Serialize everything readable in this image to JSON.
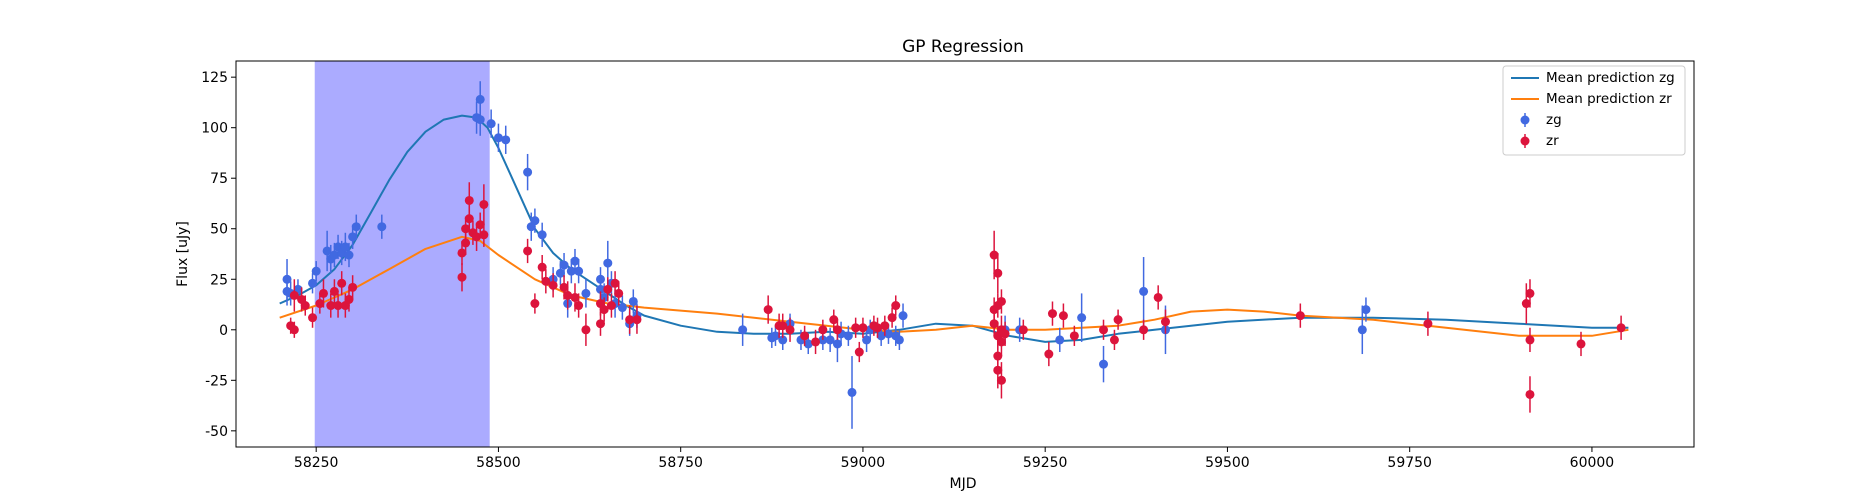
{
  "chart_data": {
    "type": "scatter",
    "title": "GP Regression",
    "xlabel": "MJD",
    "ylabel": "Flux [uJy]",
    "xlim": [
      58140,
      60140
    ],
    "ylim": [
      -58,
      133
    ],
    "xticks": [
      58250,
      58500,
      58750,
      59000,
      59250,
      59500,
      59750,
      60000
    ],
    "yticks": [
      -50,
      -25,
      0,
      25,
      50,
      75,
      100,
      125
    ],
    "grid": false,
    "legend_position": "top-right",
    "shaded_region": {
      "x0": 58248,
      "x1": 58488,
      "color": "#a6a6ff"
    },
    "lines": [
      {
        "name": "Mean prediction zg",
        "color": "#1f77b4",
        "x": [
          58200,
          58225,
          58250,
          58275,
          58300,
          58325,
          58350,
          58375,
          58400,
          58425,
          58450,
          58470,
          58485,
          58500,
          58525,
          58550,
          58575,
          58600,
          58625,
          58650,
          58675,
          58700,
          58750,
          58800,
          58850,
          58900,
          58950,
          59000,
          59025,
          59050,
          59100,
          59150,
          59200,
          59250,
          59300,
          59350,
          59400,
          59450,
          59500,
          59600,
          59700,
          59800,
          59900,
          60000,
          60050
        ],
        "y": [
          13,
          17,
          22,
          30,
          42,
          58,
          74,
          88,
          98,
          104,
          106,
          105,
          100,
          90,
          70,
          50,
          38,
          30,
          24,
          18,
          12,
          7,
          2,
          -1,
          -2,
          -2,
          -1,
          -2,
          -1,
          0,
          3,
          2,
          -3,
          -6,
          -5,
          -2,
          0,
          2,
          4,
          6,
          6,
          5,
          3,
          1,
          1
        ]
      },
      {
        "name": "Mean prediction zr",
        "color": "#ff7f0e",
        "x": [
          58200,
          58250,
          58300,
          58350,
          58400,
          58450,
          58475,
          58500,
          58550,
          58600,
          58650,
          58700,
          58800,
          58900,
          59000,
          59050,
          59100,
          59150,
          59200,
          59250,
          59300,
          59350,
          59400,
          59450,
          59500,
          59550,
          59600,
          59700,
          59800,
          59900,
          60000,
          60050
        ],
        "y": [
          6,
          12,
          20,
          30,
          40,
          46,
          44,
          37,
          25,
          17,
          13,
          11,
          8,
          4,
          0,
          -1,
          0,
          2,
          0,
          0,
          1,
          2,
          5,
          9,
          10,
          9,
          7,
          5,
          1,
          -3,
          -3,
          0
        ]
      }
    ],
    "series": [
      {
        "name": "zg",
        "color": "#4169e1",
        "points": [
          [
            58210,
            25,
            10
          ],
          [
            58210,
            19,
            7
          ],
          [
            58215,
            18,
            6
          ],
          [
            58225,
            20,
            5
          ],
          [
            58245,
            23,
            5
          ],
          [
            58250,
            29,
            5
          ],
          [
            58265,
            39,
            10
          ],
          [
            58270,
            35,
            7
          ],
          [
            58275,
            37,
            6
          ],
          [
            58280,
            41,
            6
          ],
          [
            58285,
            38,
            6
          ],
          [
            58290,
            41,
            7
          ],
          [
            58295,
            37,
            6
          ],
          [
            58300,
            46,
            6
          ],
          [
            58305,
            51,
            6
          ],
          [
            58340,
            51,
            6
          ],
          [
            58470,
            105,
            8
          ],
          [
            58475,
            114,
            9
          ],
          [
            58475,
            104,
            8
          ],
          [
            58490,
            102,
            7
          ],
          [
            58500,
            95,
            7
          ],
          [
            58510,
            94,
            7
          ],
          [
            58540,
            78,
            9
          ],
          [
            58545,
            51,
            7
          ],
          [
            58550,
            54,
            6
          ],
          [
            58560,
            47,
            6
          ],
          [
            58575,
            25,
            6
          ],
          [
            58585,
            28,
            6
          ],
          [
            58590,
            32,
            6
          ],
          [
            58595,
            13,
            7
          ],
          [
            58600,
            29,
            6
          ],
          [
            58605,
            34,
            6
          ],
          [
            58610,
            29,
            6
          ],
          [
            58620,
            18,
            7
          ],
          [
            58640,
            25,
            6
          ],
          [
            58640,
            20,
            6
          ],
          [
            58645,
            16,
            7
          ],
          [
            58650,
            33,
            11
          ],
          [
            58655,
            23,
            6
          ],
          [
            58660,
            13,
            7
          ],
          [
            58670,
            11,
            6
          ],
          [
            58680,
            3,
            6
          ],
          [
            58685,
            14,
            6
          ],
          [
            58690,
            7,
            6
          ],
          [
            58835,
            0,
            8
          ],
          [
            58875,
            -4,
            5
          ],
          [
            58880,
            -3,
            5
          ],
          [
            58890,
            -5,
            5
          ],
          [
            58900,
            3,
            5
          ],
          [
            58915,
            -5,
            5
          ],
          [
            58925,
            -7,
            5
          ],
          [
            58945,
            -5,
            5
          ],
          [
            58955,
            -5,
            6
          ],
          [
            58965,
            -7,
            9
          ],
          [
            58970,
            -2,
            6
          ],
          [
            58980,
            -3,
            5
          ],
          [
            58985,
            -31,
            18
          ],
          [
            59005,
            -5,
            6
          ],
          [
            59010,
            0,
            5
          ],
          [
            59025,
            -3,
            5
          ],
          [
            59035,
            -2,
            5
          ],
          [
            59045,
            -3,
            5
          ],
          [
            59050,
            -5,
            5
          ],
          [
            59055,
            7,
            6
          ],
          [
            59195,
            0,
            7
          ],
          [
            59215,
            0,
            6
          ],
          [
            59270,
            -5,
            6
          ],
          [
            59300,
            6,
            12
          ],
          [
            59330,
            -17,
            9
          ],
          [
            59385,
            19,
            17
          ],
          [
            59415,
            0,
            12
          ],
          [
            59685,
            0,
            12
          ],
          [
            59690,
            10,
            6
          ]
        ]
      },
      {
        "name": "zr",
        "color": "#dc143c",
        "points": [
          [
            58215,
            2,
            4
          ],
          [
            58220,
            0,
            4
          ],
          [
            58220,
            17,
            8
          ],
          [
            58230,
            15,
            6
          ],
          [
            58235,
            12,
            5
          ],
          [
            58245,
            6,
            5
          ],
          [
            58255,
            13,
            5
          ],
          [
            58260,
            18,
            7
          ],
          [
            58270,
            12,
            6
          ],
          [
            58275,
            19,
            6
          ],
          [
            58280,
            12,
            6
          ],
          [
            58285,
            23,
            6
          ],
          [
            58290,
            12,
            6
          ],
          [
            58295,
            15,
            6
          ],
          [
            58300,
            21,
            6
          ],
          [
            58450,
            26,
            7
          ],
          [
            58450,
            38,
            6
          ],
          [
            58455,
            43,
            6
          ],
          [
            58455,
            50,
            6
          ],
          [
            58460,
            55,
            7
          ],
          [
            58460,
            64,
            9
          ],
          [
            58465,
            48,
            6
          ],
          [
            58470,
            46,
            7
          ],
          [
            58475,
            52,
            6
          ],
          [
            58480,
            62,
            10
          ],
          [
            58480,
            47,
            6
          ],
          [
            58540,
            39,
            6
          ],
          [
            58550,
            13,
            5
          ],
          [
            58560,
            31,
            6
          ],
          [
            58565,
            24,
            6
          ],
          [
            58575,
            22,
            6
          ],
          [
            58590,
            21,
            6
          ],
          [
            58595,
            17,
            7
          ],
          [
            58605,
            16,
            7
          ],
          [
            58610,
            12,
            6
          ],
          [
            58620,
            0,
            8
          ],
          [
            58640,
            3,
            6
          ],
          [
            58640,
            13,
            6
          ],
          [
            58645,
            10,
            6
          ],
          [
            58650,
            20,
            6
          ],
          [
            58655,
            12,
            6
          ],
          [
            58660,
            23,
            6
          ],
          [
            58665,
            18,
            6
          ],
          [
            58680,
            5,
            7
          ],
          [
            58690,
            5,
            7
          ],
          [
            58870,
            10,
            7
          ],
          [
            58885,
            2,
            6
          ],
          [
            58890,
            2,
            6
          ],
          [
            58900,
            0,
            6
          ],
          [
            58920,
            -3,
            5
          ],
          [
            58935,
            -6,
            6
          ],
          [
            58945,
            0,
            5
          ],
          [
            58960,
            5,
            5
          ],
          [
            58965,
            0,
            5
          ],
          [
            58990,
            1,
            5
          ],
          [
            58995,
            -11,
            5
          ],
          [
            59000,
            1,
            5
          ],
          [
            59015,
            2,
            5
          ],
          [
            59020,
            1,
            5
          ],
          [
            59030,
            2,
            5
          ],
          [
            59040,
            6,
            5
          ],
          [
            59045,
            12,
            5
          ],
          [
            59180,
            37,
            12
          ],
          [
            59180,
            10,
            6
          ],
          [
            59180,
            3,
            6
          ],
          [
            59185,
            28,
            10
          ],
          [
            59185,
            -3,
            7
          ],
          [
            59185,
            -13,
            8
          ],
          [
            59185,
            -20,
            9
          ],
          [
            59185,
            12,
            6
          ],
          [
            59190,
            -25,
            9
          ],
          [
            59190,
            -6,
            7
          ],
          [
            59190,
            0,
            7
          ],
          [
            59190,
            14,
            6
          ],
          [
            59195,
            -2,
            6
          ],
          [
            59220,
            0,
            5
          ],
          [
            59255,
            -12,
            6
          ],
          [
            59260,
            8,
            6
          ],
          [
            59275,
            7,
            6
          ],
          [
            59290,
            -3,
            5
          ],
          [
            59330,
            0,
            5
          ],
          [
            59345,
            -5,
            5
          ],
          [
            59350,
            5,
            5
          ],
          [
            59385,
            0,
            5
          ],
          [
            59405,
            16,
            6
          ],
          [
            59415,
            4,
            6
          ],
          [
            59600,
            7,
            6
          ],
          [
            59775,
            3,
            6
          ],
          [
            59910,
            13,
            10
          ],
          [
            59915,
            -32,
            9
          ],
          [
            59915,
            18,
            7
          ],
          [
            59915,
            -5,
            6
          ],
          [
            59985,
            -7,
            6
          ],
          [
            60040,
            1,
            6
          ]
        ]
      }
    ]
  }
}
